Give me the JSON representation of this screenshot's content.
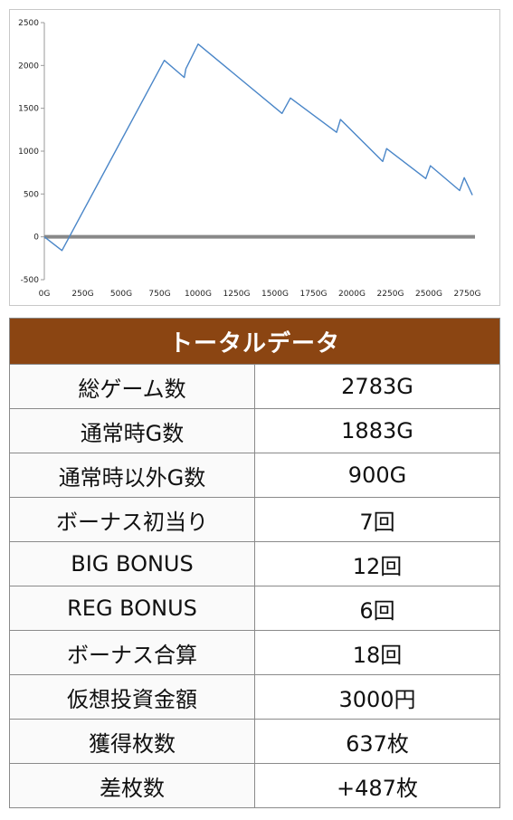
{
  "chart_data": {
    "type": "line",
    "xlabel": "",
    "ylabel": "",
    "xlim": [
      0,
      2800
    ],
    "ylim": [
      -500,
      2500
    ],
    "x_ticks": [
      "0G",
      "250G",
      "500G",
      "750G",
      "1000G",
      "1250G",
      "1500G",
      "1750G",
      "2000G",
      "2250G",
      "2500G",
      "2750G"
    ],
    "x_tick_values": [
      0,
      250,
      500,
      750,
      1000,
      1250,
      1500,
      1750,
      2000,
      2250,
      2500,
      2750
    ],
    "y_ticks": [
      "2500",
      "2000",
      "1500",
      "1000",
      "500",
      "0",
      "-500"
    ],
    "y_tick_values": [
      2500,
      2000,
      1500,
      1000,
      500,
      0,
      -500
    ],
    "grid": false,
    "legend": "none",
    "line_color": "#4a86c8",
    "zero_line_color": "#888888",
    "series": [
      {
        "x": [
          0,
          115,
          780,
          910,
          920,
          1000,
          1545,
          1600,
          1900,
          1925,
          2200,
          2225,
          2480,
          2510,
          2700,
          2730,
          2783
        ],
        "y": [
          0,
          -160,
          2060,
          1860,
          1960,
          2250,
          1440,
          1620,
          1220,
          1370,
          880,
          1030,
          680,
          830,
          540,
          690,
          487
        ]
      }
    ]
  },
  "table": {
    "title": "トータルデータ",
    "rows": [
      {
        "label": "総ゲーム数",
        "value": "2783G"
      },
      {
        "label": "通常時G数",
        "value": "1883G"
      },
      {
        "label": "通常時以外G数",
        "value": "900G"
      },
      {
        "label": "ボーナス初当り",
        "value": "7回"
      },
      {
        "label": "BIG BONUS",
        "value": "12回"
      },
      {
        "label": "REG BONUS",
        "value": "6回"
      },
      {
        "label": "ボーナス合算",
        "value": "18回"
      },
      {
        "label": "仮想投資金額",
        "value": "3000円"
      },
      {
        "label": "獲得枚数",
        "value": "637枚"
      },
      {
        "label": "差枚数",
        "value": "+487枚"
      }
    ]
  }
}
